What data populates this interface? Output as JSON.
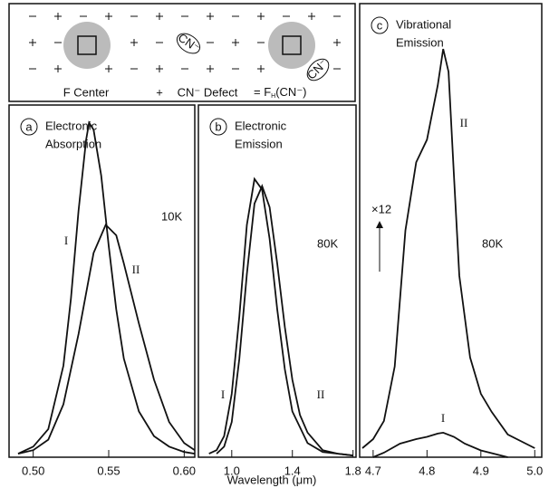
{
  "diagram": {
    "f_center": "F Center",
    "plus": "+",
    "defect": "CN⁻ Defect",
    "equals": "= F",
    "sub": "H",
    "equals_tail": "(CN⁻)",
    "molecule": "CN⁻"
  },
  "x_label": "Wavelength (μm)",
  "chart_data": [
    {
      "type": "line",
      "panel_label": "a",
      "title": [
        "Electronic",
        "Absorption"
      ],
      "annotation": "10K",
      "xlim": [
        0.484,
        0.607
      ],
      "ylim": [
        0,
        1
      ],
      "xticks": [
        {
          "value": 0.5,
          "label": "0.50"
        },
        0.55,
        {
          "value": 0.6,
          "label": "0.60"
        }
      ],
      "series": [
        {
          "name": "I",
          "color": "#111",
          "x": [
            0.49,
            0.5,
            0.51,
            0.52,
            0.525,
            0.53,
            0.535,
            0.537,
            0.54,
            0.545,
            0.55,
            0.555,
            0.56,
            0.57,
            0.58,
            0.59,
            0.6,
            0.607
          ],
          "values": [
            0.01,
            0.03,
            0.08,
            0.26,
            0.45,
            0.7,
            0.9,
            0.95,
            0.93,
            0.8,
            0.6,
            0.42,
            0.28,
            0.13,
            0.06,
            0.03,
            0.015,
            0.01
          ]
        },
        {
          "name": "II",
          "color": "#111",
          "x": [
            0.49,
            0.5,
            0.51,
            0.52,
            0.53,
            0.54,
            0.548,
            0.555,
            0.56,
            0.57,
            0.58,
            0.59,
            0.6,
            0.607
          ],
          "values": [
            0.01,
            0.02,
            0.05,
            0.15,
            0.35,
            0.58,
            0.66,
            0.63,
            0.55,
            0.38,
            0.22,
            0.1,
            0.04,
            0.02
          ]
        }
      ]
    },
    {
      "type": "line",
      "panel_label": "b",
      "title": [
        "Electronic",
        "Emission"
      ],
      "annotation": "80K",
      "xlim": [
        0.78,
        1.82
      ],
      "ylim": [
        0,
        1
      ],
      "xticks": [
        {
          "value": 1,
          "label": "1.0"
        },
        1.4,
        1.8
      ],
      "series": [
        {
          "name": "I",
          "color": "#111",
          "x": [
            0.85,
            0.9,
            0.95,
            1.0,
            1.05,
            1.1,
            1.15,
            1.2,
            1.25,
            1.3,
            1.35,
            1.4,
            1.5,
            1.6,
            1.7,
            1.8
          ],
          "values": [
            0.01,
            0.02,
            0.06,
            0.18,
            0.4,
            0.66,
            0.79,
            0.76,
            0.62,
            0.42,
            0.25,
            0.13,
            0.04,
            0.015,
            0.01,
            0.005
          ]
        },
        {
          "name": "II",
          "color": "#111",
          "x": [
            0.9,
            0.95,
            1.0,
            1.05,
            1.1,
            1.15,
            1.2,
            1.25,
            1.3,
            1.35,
            1.4,
            1.45,
            1.5,
            1.6,
            1.7,
            1.8
          ],
          "values": [
            0.01,
            0.03,
            0.1,
            0.28,
            0.52,
            0.72,
            0.77,
            0.71,
            0.55,
            0.37,
            0.22,
            0.12,
            0.07,
            0.02,
            0.01,
            0.005
          ]
        }
      ]
    },
    {
      "type": "line",
      "panel_label": "c",
      "title": [
        "Vibrational",
        "Emission"
      ],
      "annotation": "80K",
      "scale_note": "×12",
      "xlim": [
        4.675,
        5.013
      ],
      "ylim": [
        0,
        1
      ],
      "xticks": [
        4.7,
        4.8,
        4.9,
        {
          "value": 5,
          "label": "5.0"
        }
      ],
      "series": [
        {
          "name": "II",
          "color": "#111",
          "x": [
            4.68,
            4.7,
            4.72,
            4.74,
            4.76,
            4.78,
            4.8,
            4.82,
            4.83,
            4.84,
            4.85,
            4.86,
            4.88,
            4.9,
            4.92,
            4.95,
            5.0
          ],
          "values": [
            0.02,
            0.04,
            0.08,
            0.2,
            0.5,
            0.65,
            0.7,
            0.82,
            0.9,
            0.85,
            0.62,
            0.4,
            0.22,
            0.14,
            0.1,
            0.05,
            0.02
          ]
        },
        {
          "name": "I",
          "color": "#111",
          "x": [
            4.7,
            4.72,
            4.75,
            4.78,
            4.8,
            4.82,
            4.83,
            4.85,
            4.87,
            4.9,
            4.95
          ],
          "values": [
            0.0,
            0.01,
            0.03,
            0.04,
            0.045,
            0.052,
            0.054,
            0.045,
            0.03,
            0.015,
            0.0
          ]
        }
      ]
    }
  ]
}
